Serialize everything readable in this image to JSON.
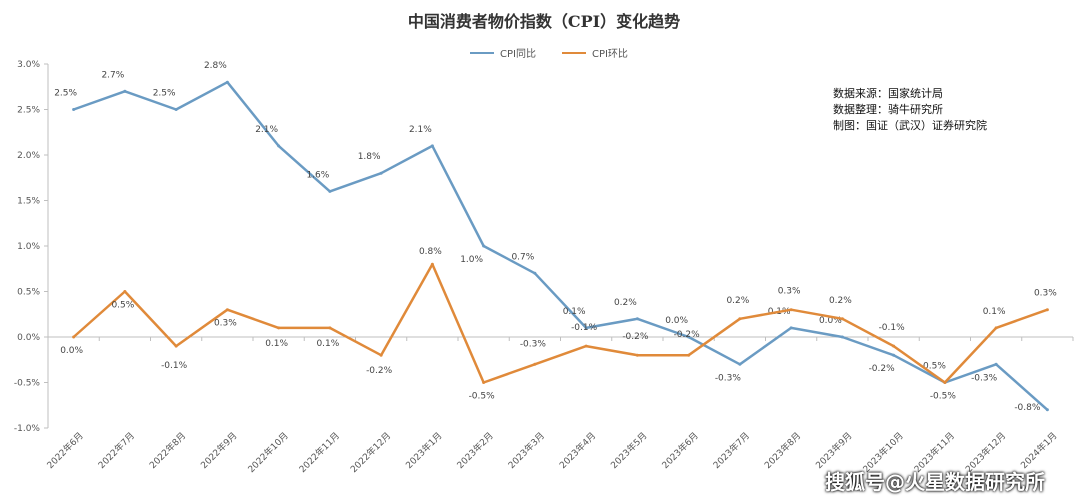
{
  "title": "中国消费者物价指数（CPI）变化趋势",
  "source_lines": [
    "数据来源：国家统计局",
    "数据整理：骑牛研究所",
    "制图：国证（武汉）证券研究院"
  ],
  "watermark": "搜狐号@火星数据研究所",
  "chart_data": {
    "type": "line",
    "title": "中国消费者物价指数（CPI）变化趋势",
    "categories": [
      "2022年6月",
      "2022年7月",
      "2022年8月",
      "2022年9月",
      "2022年10月",
      "2022年11月",
      "2022年12月",
      "2023年1月",
      "2023年2月",
      "2023年3月",
      "2023年4月",
      "2023年5月",
      "2023年6月",
      "2023年7月",
      "2023年8月",
      "2023年9月",
      "2023年10月",
      "2023年11月",
      "2023年12月",
      "2024年1月"
    ],
    "series": [
      {
        "name": "CPI同比",
        "color": "#6a9bc3",
        "values": [
          2.5,
          2.7,
          2.5,
          2.8,
          2.1,
          1.6,
          1.8,
          2.1,
          1.0,
          0.7,
          0.1,
          0.2,
          0.0,
          -0.3,
          0.1,
          0.0,
          -0.2,
          -0.5,
          -0.3,
          -0.8
        ],
        "labels": [
          "2.5%",
          "2.7%",
          "2.5%",
          "2.8%",
          "2.1%",
          "1.6%",
          "1.8%",
          "2.1%",
          "1.0%",
          "0.7%",
          "0.1%",
          "0.2%",
          "0.0%",
          "-0.3%",
          "0.1%",
          "0.0%",
          "-0.2%",
          "-0.5%",
          "-0.3%",
          "-0.8%"
        ]
      },
      {
        "name": "CPI环比",
        "color": "#e08a3a",
        "values": [
          0.0,
          0.5,
          -0.1,
          0.3,
          0.1,
          0.1,
          -0.2,
          0.8,
          -0.5,
          -0.3,
          -0.1,
          -0.2,
          -0.2,
          0.2,
          0.3,
          0.2,
          -0.1,
          -0.5,
          0.1,
          0.3
        ],
        "labels": [
          "0.0%",
          "0.5%",
          "-0.1%",
          "0.3%",
          "0.1%",
          "0.1%",
          "-0.2%",
          "0.8%",
          "-0.5%",
          "-0.3%",
          "-0.1%",
          "-0.2%",
          "-0.2%",
          "0.2%",
          "0.3%",
          "0.2%",
          "-0.1%",
          "-0.5%",
          "0.1%",
          "0.3%"
        ]
      }
    ],
    "y_ticks": [
      "3.0%",
      "2.5%",
      "2.0%",
      "1.5%",
      "1.0%",
      "0.5%",
      "0.0%",
      "-0.5%",
      "-1.0%"
    ],
    "ylim": [
      -1.0,
      3.0
    ],
    "grid": false,
    "legend": "top-center"
  }
}
